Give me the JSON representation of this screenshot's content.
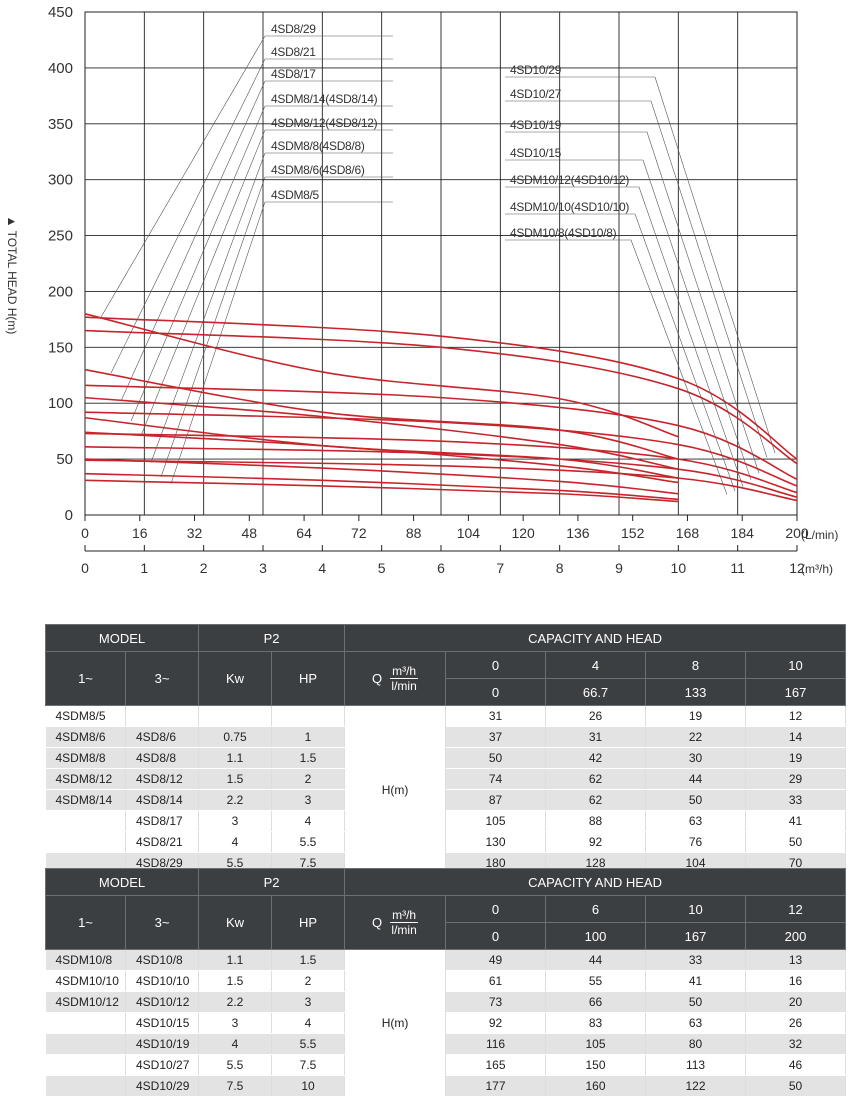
{
  "chart_data": {
    "type": "line",
    "y_axis": {
      "label": "TOTAL HEAD H(m)",
      "ylim": [
        0,
        450
      ],
      "ticks": [
        "0",
        "50",
        "100",
        "150",
        "200",
        "250",
        "300",
        "350",
        "400",
        "450"
      ]
    },
    "x_axis_lpm": {
      "unit": "(L/min)",
      "xlim": [
        0,
        200
      ],
      "ticks": [
        "0",
        "16",
        "32",
        "48",
        "64",
        "72",
        "88",
        "104",
        "120",
        "136",
        "152",
        "168",
        "184",
        "200"
      ]
    },
    "x_axis_m3h": {
      "unit": "(m³/h)",
      "xlim": [
        0,
        12
      ],
      "ticks": [
        "0",
        "1",
        "2",
        "3",
        "4",
        "5",
        "6",
        "7",
        "8",
        "9",
        "10",
        "11",
        "12"
      ]
    },
    "series_4sd8": [
      {
        "name": "4SD8/29",
        "flow_m3h": [
          0,
          4,
          8,
          10
        ],
        "head_m": [
          180,
          128,
          104,
          70
        ]
      },
      {
        "name": "4SD8/21",
        "flow_m3h": [
          0,
          4,
          8,
          10
        ],
        "head_m": [
          130,
          92,
          76,
          50
        ]
      },
      {
        "name": "4SD8/17",
        "flow_m3h": [
          0,
          4,
          8,
          10
        ],
        "head_m": [
          105,
          88,
          63,
          41
        ]
      },
      {
        "name": "4SDM8/14(4SD8/14)",
        "flow_m3h": [
          0,
          4,
          8,
          10
        ],
        "head_m": [
          87,
          62,
          50,
          33
        ]
      },
      {
        "name": "4SDM8/12(4SD8/12)",
        "flow_m3h": [
          0,
          4,
          8,
          10
        ],
        "head_m": [
          74,
          62,
          44,
          29
        ]
      },
      {
        "name": "4SDM8/8(4SD8/8)",
        "flow_m3h": [
          0,
          4,
          8,
          10
        ],
        "head_m": [
          50,
          42,
          30,
          19
        ]
      },
      {
        "name": "4SDM8/6(4SD8/6)",
        "flow_m3h": [
          0,
          4,
          8,
          10
        ],
        "head_m": [
          37,
          31,
          22,
          14
        ]
      },
      {
        "name": "4SDM8/5",
        "flow_m3h": [
          0,
          4,
          8,
          10
        ],
        "head_m": [
          31,
          26,
          19,
          12
        ]
      }
    ],
    "series_4sd10": [
      {
        "name": "4SD10/29",
        "flow_m3h": [
          0,
          6,
          10,
          12
        ],
        "head_m": [
          177,
          160,
          122,
          50
        ]
      },
      {
        "name": "4SD10/27",
        "flow_m3h": [
          0,
          6,
          10,
          12
        ],
        "head_m": [
          165,
          150,
          113,
          46
        ]
      },
      {
        "name": "4SD10/19",
        "flow_m3h": [
          0,
          6,
          10,
          12
        ],
        "head_m": [
          116,
          105,
          80,
          32
        ]
      },
      {
        "name": "4SD10/15",
        "flow_m3h": [
          0,
          6,
          10,
          12
        ],
        "head_m": [
          92,
          83,
          63,
          26
        ]
      },
      {
        "name": "4SDM10/12(4SD10/12)",
        "flow_m3h": [
          0,
          6,
          10,
          12
        ],
        "head_m": [
          73,
          66,
          50,
          20
        ]
      },
      {
        "name": "4SDM10/10(4SD10/10)",
        "flow_m3h": [
          0,
          6,
          10,
          12
        ],
        "head_m": [
          61,
          55,
          41,
          16
        ]
      },
      {
        "name": "4SDM10/8(4SD10/8)",
        "flow_m3h": [
          0,
          6,
          10,
          12
        ],
        "head_m": [
          49,
          44,
          33,
          13
        ]
      }
    ],
    "grid": true,
    "curve_color": "#c8242b"
  },
  "table1": {
    "h_model": "MODEL",
    "h_p2": "P2",
    "h_cap": "CAPACITY AND HEAD",
    "h_1ph": "1~",
    "h_3ph": "3~",
    "h_kw": "Kw",
    "h_hp": "HP",
    "q": "Q",
    "q_unit1": "m³/h",
    "q_unit2": "l/min",
    "flow_m3h": [
      "0",
      "4",
      "8",
      "10"
    ],
    "flow_lmin": [
      "0",
      "66.7",
      "133",
      "167"
    ],
    "hm": "H(m)",
    "rows": [
      {
        "m1": "4SDM8/5",
        "m3": "",
        "kw": "",
        "hp": "",
        "h": [
          "31",
          "26",
          "19",
          "12"
        ]
      },
      {
        "m1": "4SDM8/6",
        "m3": "4SD8/6",
        "kw": "0.75",
        "hp": "1",
        "h": [
          "37",
          "31",
          "22",
          "14"
        ]
      },
      {
        "m1": "4SDM8/8",
        "m3": "4SD8/8",
        "kw": "1.1",
        "hp": "1.5",
        "h": [
          "50",
          "42",
          "30",
          "19"
        ]
      },
      {
        "m1": "4SDM8/12",
        "m3": "4SD8/12",
        "kw": "1.5",
        "hp": "2",
        "h": [
          "74",
          "62",
          "44",
          "29"
        ]
      },
      {
        "m1": "4SDM8/14",
        "m3": "4SD8/14",
        "kw": "2.2",
        "hp": "3",
        "h": [
          "87",
          "62",
          "50",
          "33"
        ]
      },
      {
        "m1": "",
        "m3": "4SD8/17",
        "kw": "3",
        "hp": "4",
        "h": [
          "105",
          "88",
          "63",
          "41"
        ]
      },
      {
        "m1": "",
        "m3": "4SD8/21",
        "kw": "4",
        "hp": "5.5",
        "h": [
          "130",
          "92",
          "76",
          "50"
        ]
      },
      {
        "m1": "",
        "m3": "4SD8/29",
        "kw": "5.5",
        "hp": "7.5",
        "h": [
          "180",
          "128",
          "104",
          "70"
        ]
      }
    ]
  },
  "table2": {
    "h_model": "MODEL",
    "h_p2": "P2",
    "h_cap": "CAPACITY AND HEAD",
    "h_1ph": "1~",
    "h_3ph": "3~",
    "h_kw": "Kw",
    "h_hp": "HP",
    "q": "Q",
    "q_unit1": "m³/h",
    "q_unit2": "l/min",
    "flow_m3h": [
      "0",
      "6",
      "10",
      "12"
    ],
    "flow_lmin": [
      "0",
      "100",
      "167",
      "200"
    ],
    "hm": "H(m)",
    "rows": [
      {
        "m1": "4SDM10/8",
        "m3": "4SD10/8",
        "kw": "1.1",
        "hp": "1.5",
        "h": [
          "49",
          "44",
          "33",
          "13"
        ]
      },
      {
        "m1": "4SDM10/10",
        "m3": "4SD10/10",
        "kw": "1.5",
        "hp": "2",
        "h": [
          "61",
          "55",
          "41",
          "16"
        ]
      },
      {
        "m1": "4SDM10/12",
        "m3": "4SD10/12",
        "kw": "2.2",
        "hp": "3",
        "h": [
          "73",
          "66",
          "50",
          "20"
        ]
      },
      {
        "m1": "",
        "m3": "4SD10/15",
        "kw": "3",
        "hp": "4",
        "h": [
          "92",
          "83",
          "63",
          "26"
        ]
      },
      {
        "m1": "",
        "m3": "4SD10/19",
        "kw": "4",
        "hp": "5.5",
        "h": [
          "116",
          "105",
          "80",
          "32"
        ]
      },
      {
        "m1": "",
        "m3": "4SD10/27",
        "kw": "5.5",
        "hp": "7.5",
        "h": [
          "165",
          "150",
          "113",
          "46"
        ]
      },
      {
        "m1": "",
        "m3": "4SD10/29",
        "kw": "7.5",
        "hp": "10",
        "h": [
          "177",
          "160",
          "122",
          "50"
        ]
      }
    ]
  }
}
